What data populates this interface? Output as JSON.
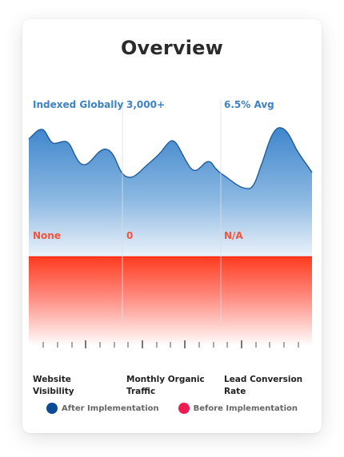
{
  "title": "Overview",
  "metrics": [
    {
      "name": "Website Visibility",
      "after": "Indexed Globally",
      "before": "None"
    },
    {
      "name": "Monthly Organic Traffic",
      "after": "3,000+",
      "before": "0"
    },
    {
      "name": "Lead Conversion Rate",
      "after": "6.5% Avg",
      "before": "N/A"
    }
  ],
  "legend": {
    "after_label": "After Implementation",
    "after_color": "#0a4a96",
    "before_label": "Before Implementation",
    "before_color": "#ee1c4f"
  }
}
